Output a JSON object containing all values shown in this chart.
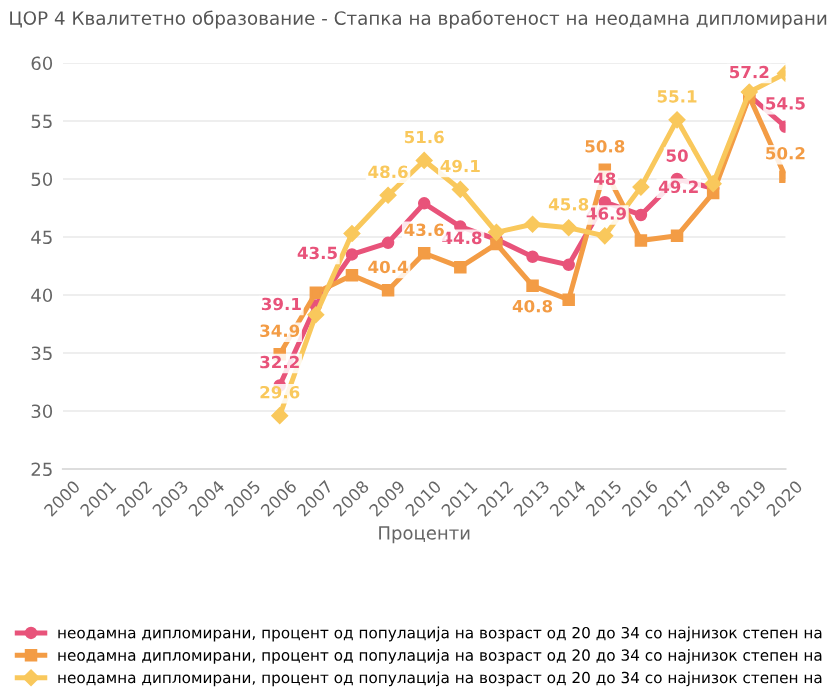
{
  "chart_data": {
    "type": "line",
    "title": "ЦОР 4 Квалитетно образование - Стапка на вработеност на неодамна дипломирани",
    "xlabel": "Проценти",
    "x": [
      2006,
      2007,
      2008,
      2009,
      2010,
      2011,
      2012,
      2013,
      2014,
      2015,
      2016,
      2017,
      2018,
      2019,
      2020
    ],
    "xlim": [
      2000,
      2020
    ],
    "xticks": [
      2000,
      2001,
      2002,
      2003,
      2004,
      2005,
      2006,
      2007,
      2008,
      2009,
      2010,
      2011,
      2012,
      2013,
      2014,
      2015,
      2016,
      2017,
      2018,
      2019,
      2020
    ],
    "ylim": [
      25,
      60
    ],
    "yticks": [
      25,
      30,
      35,
      40,
      45,
      50,
      55,
      60
    ],
    "grid": "y",
    "legend": "bottom",
    "series": [
      {
        "name": "неодамна дипломирани, процент од популација на возраст од 20 до 34 со најнизок степен на",
        "color": "#e8537a",
        "marker": "circle",
        "values": [
          32.2,
          39.1,
          43.5,
          44.5,
          47.9,
          45.9,
          44.8,
          43.3,
          42.6,
          48,
          46.9,
          50,
          49.2,
          57.2,
          54.5
        ],
        "value_labels": [
          "32.2",
          "39.1",
          "43.5",
          null,
          null,
          null,
          "44.8",
          null,
          null,
          "48",
          "46.9",
          "50",
          "49.2",
          "57.2",
          "54.5"
        ]
      },
      {
        "name": "неодамна дипломирани, процент од популација на возраст од 20 до 34 со најнизок степен на",
        "color": "#f39c45",
        "marker": "square",
        "values": [
          34.9,
          40.2,
          41.7,
          40.4,
          43.6,
          42.4,
          44.4,
          40.8,
          39.6,
          50.8,
          44.7,
          45.1,
          48.8,
          57.1,
          50.2
        ],
        "value_labels": [
          "34.9",
          null,
          null,
          "40.4",
          "43.6",
          null,
          null,
          "40.8",
          null,
          "50.8",
          null,
          null,
          null,
          null,
          "50.2"
        ]
      },
      {
        "name": "неодамна дипломирани, процент од популација на возраст од 20 до 34 со најнизок степен на",
        "color": "#f9c85c",
        "marker": "diamond",
        "values": [
          29.6,
          38.3,
          45.3,
          48.6,
          51.6,
          49.1,
          45.4,
          46.1,
          45.8,
          45.1,
          49.3,
          55.1,
          49.6,
          57.5,
          59.1
        ],
        "value_labels": [
          "29.6",
          null,
          null,
          "48.6",
          "51.6",
          "49.1",
          null,
          null,
          "45.8",
          null,
          null,
          "55.1",
          null,
          null,
          null
        ]
      }
    ]
  }
}
